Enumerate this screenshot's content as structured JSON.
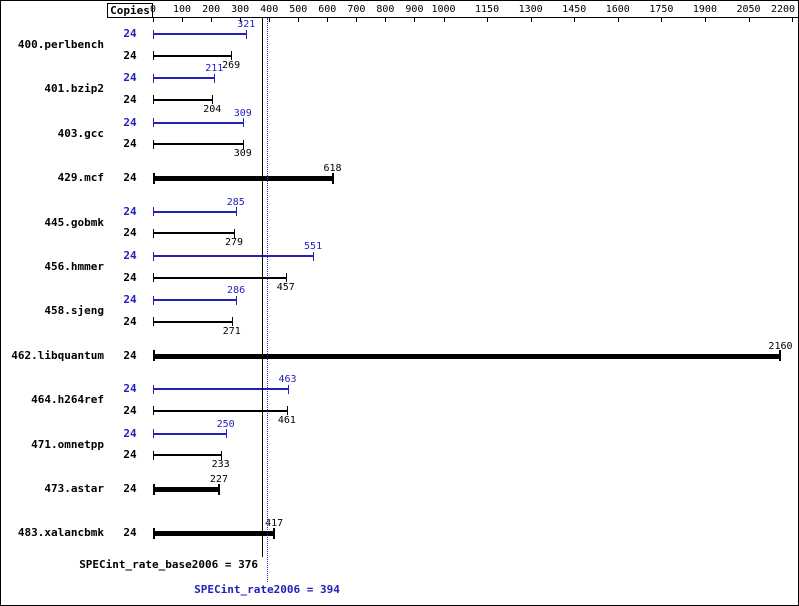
{
  "header": {
    "copies_label": "Copies"
  },
  "chart_data": {
    "type": "bar",
    "orientation": "horizontal",
    "axis": {
      "position": "top",
      "xlim": [
        0,
        2200
      ],
      "ticks": [
        0,
        100,
        200,
        300,
        400,
        500,
        600,
        700,
        800,
        900,
        1000,
        1150,
        1300,
        1450,
        1600,
        1750,
        1900,
        2050,
        2200
      ],
      "grid": false
    },
    "benchmarks": [
      {
        "name": "400.perlbench",
        "copies": 24,
        "peak": 321,
        "base": 269,
        "base_only": false
      },
      {
        "name": "401.bzip2",
        "copies": 24,
        "peak": 211,
        "base": 204,
        "base_only": false
      },
      {
        "name": "403.gcc",
        "copies": 24,
        "peak": 309,
        "base": 309,
        "base_only": false
      },
      {
        "name": "429.mcf",
        "copies": 24,
        "base": 618,
        "base_only": true
      },
      {
        "name": "445.gobmk",
        "copies": 24,
        "peak": 285,
        "base": 279,
        "base_only": false
      },
      {
        "name": "456.hmmer",
        "copies": 24,
        "peak": 551,
        "base": 457,
        "base_only": false
      },
      {
        "name": "458.sjeng",
        "copies": 24,
        "peak": 286,
        "base": 271,
        "base_only": false
      },
      {
        "name": "462.libquantum",
        "copies": 24,
        "base": 2160,
        "base_only": true
      },
      {
        "name": "464.h264ref",
        "copies": 24,
        "peak": 463,
        "base": 461,
        "base_only": false
      },
      {
        "name": "471.omnetpp",
        "copies": 24,
        "peak": 250,
        "base": 233,
        "base_only": false
      },
      {
        "name": "473.astar",
        "copies": 24,
        "base": 227,
        "base_only": true
      },
      {
        "name": "483.xalancbmk",
        "copies": 24,
        "base": 417,
        "base_only": true
      }
    ],
    "summary": {
      "base_label": "SPECint_rate_base2006 = 376",
      "base_value": 376,
      "peak_label": "SPECint_rate2006 = 394",
      "peak_value": 394
    },
    "colors": {
      "peak_blue": "#2222bb",
      "base_black": "#000000"
    }
  }
}
